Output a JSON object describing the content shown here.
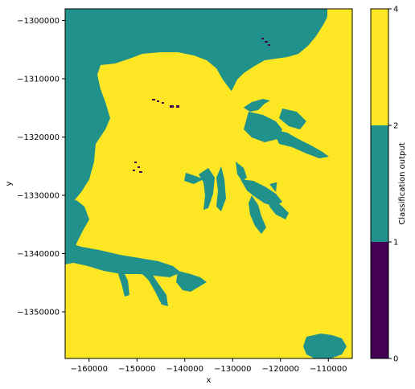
{
  "chart_data": {
    "type": "heatmap",
    "title": "",
    "xlabel": "x",
    "ylabel": "y",
    "xlim": [
      -165000,
      -105000
    ],
    "ylim": [
      -1358000,
      -1298000
    ],
    "x_ticks": [
      {
        "value": -160000,
        "label": "−160000"
      },
      {
        "value": -150000,
        "label": "−150000"
      },
      {
        "value": -140000,
        "label": "−140000"
      },
      {
        "value": -130000,
        "label": "−130000"
      },
      {
        "value": -120000,
        "label": "−120000"
      },
      {
        "value": -110000,
        "label": "−110000"
      }
    ],
    "y_ticks": [
      {
        "value": -1300000,
        "label": "−1300000"
      },
      {
        "value": -1310000,
        "label": "−1310000"
      },
      {
        "value": -1320000,
        "label": "−1320000"
      },
      {
        "value": -1330000,
        "label": "−1330000"
      },
      {
        "value": -1340000,
        "label": "−1340000"
      },
      {
        "value": -1350000,
        "label": "−1350000"
      }
    ],
    "colorbar": {
      "label": "Classification output",
      "boundaries": [
        0,
        1,
        2,
        4
      ],
      "tick_labels": [
        "0",
        "1",
        "2",
        "4"
      ],
      "colors": [
        "#440154",
        "#21918c",
        "#fde725"
      ]
    },
    "class_colors": {
      "class_0": "#440154",
      "class_2": "#21918c",
      "class_4": "#fde725"
    }
  }
}
